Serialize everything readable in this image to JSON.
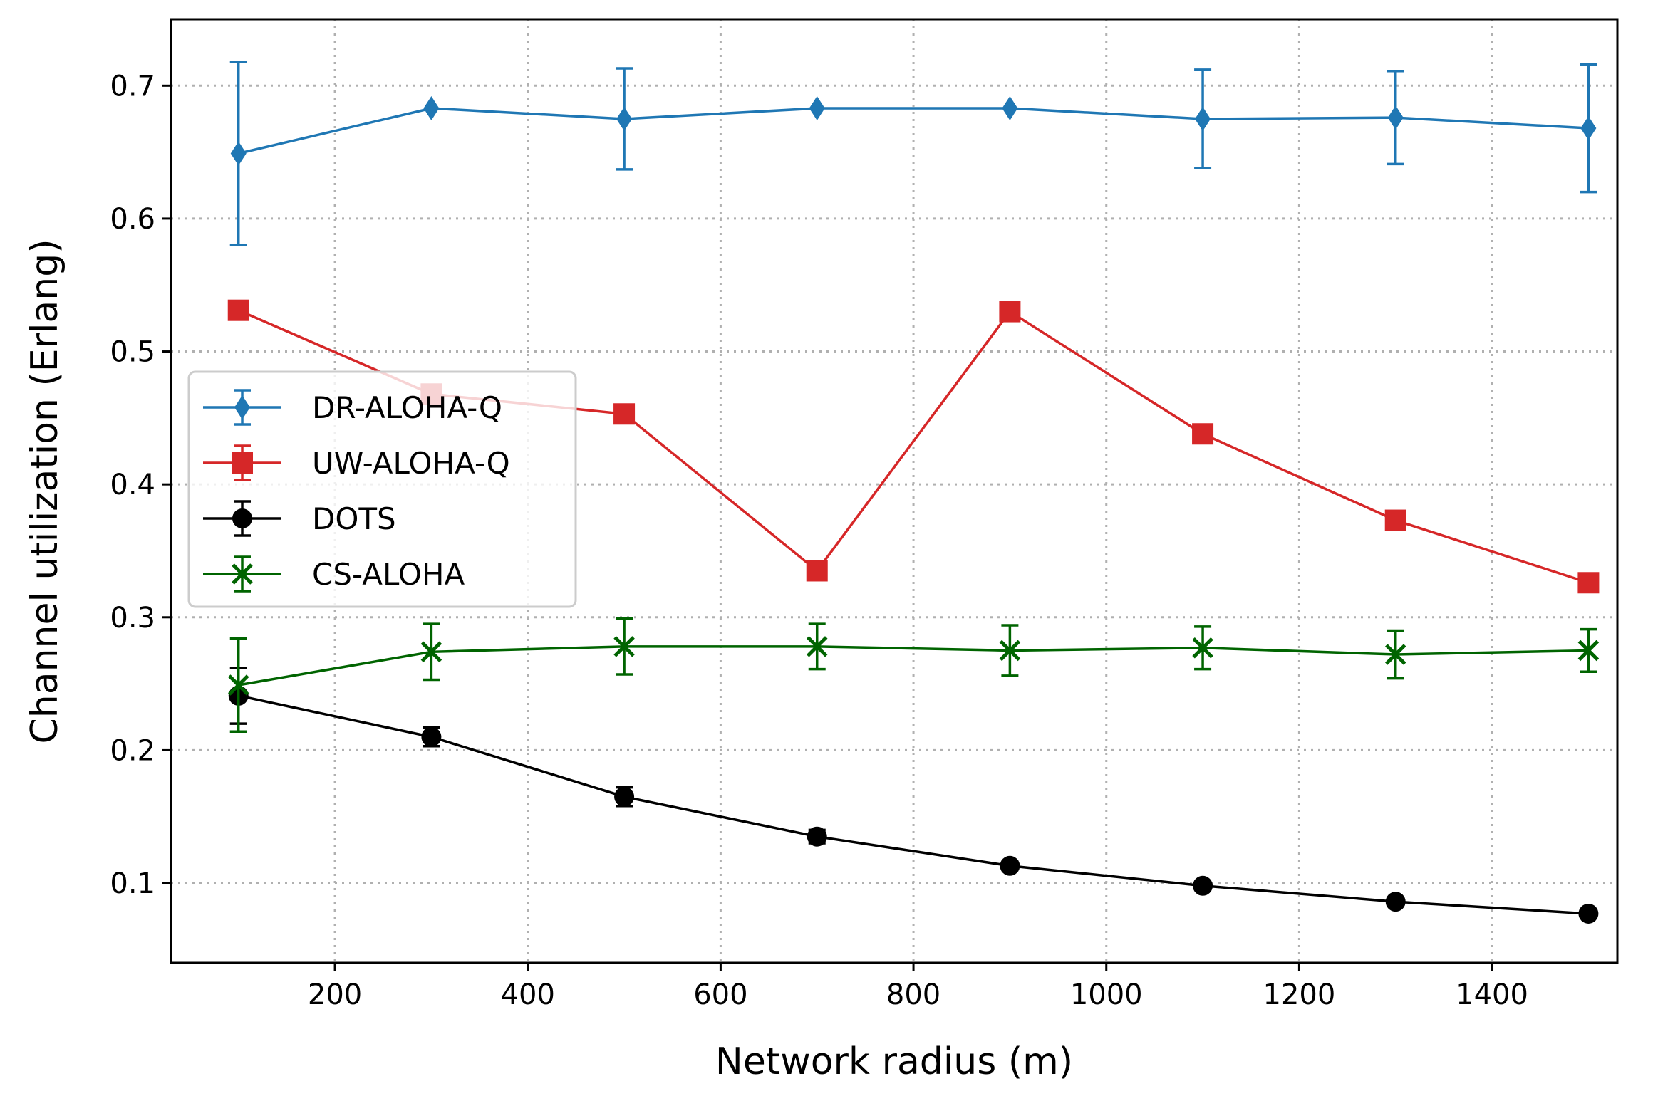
{
  "chart_data": {
    "type": "line",
    "title": "",
    "xlabel": "Network radius (m)",
    "ylabel": "Channel utilization (Erlang)",
    "xlim": [
      30,
      1530
    ],
    "ylim": [
      0.04,
      0.75
    ],
    "xticks": [
      200,
      400,
      600,
      800,
      1000,
      1200,
      1400
    ],
    "yticks": [
      0.1,
      0.2,
      0.3,
      0.4,
      0.5,
      0.6,
      0.7
    ],
    "grid": true,
    "legend_position": "center-left",
    "x": [
      100,
      300,
      500,
      700,
      900,
      1100,
      1300,
      1500
    ],
    "series": [
      {
        "name": "DR-ALOHA-Q",
        "color": "#1f77b4",
        "marker": "diamond",
        "values": [
          0.649,
          0.683,
          0.675,
          0.683,
          0.683,
          0.675,
          0.676,
          0.668
        ],
        "errors": [
          0.069,
          0.0,
          0.038,
          0.0,
          0.0,
          0.037,
          0.035,
          0.048
        ]
      },
      {
        "name": "UW-ALOHA-Q",
        "color": "#d62728",
        "marker": "square",
        "values": [
          0.531,
          0.468,
          0.453,
          0.335,
          0.53,
          0.438,
          0.373,
          0.326
        ],
        "errors": [
          0,
          0,
          0,
          0,
          0,
          0,
          0,
          0
        ]
      },
      {
        "name": "DOTS",
        "color": "#000000",
        "marker": "circle",
        "values": [
          0.241,
          0.21,
          0.165,
          0.135,
          0.113,
          0.098,
          0.086,
          0.077
        ],
        "errors": [
          0.021,
          0.007,
          0.007,
          0.005,
          0.003,
          0.003,
          0.003,
          0.003
        ]
      },
      {
        "name": "CS-ALOHA",
        "color": "#006400",
        "marker": "x",
        "values": [
          0.249,
          0.274,
          0.278,
          0.278,
          0.275,
          0.277,
          0.272,
          0.275
        ],
        "errors": [
          0.035,
          0.021,
          0.021,
          0.017,
          0.019,
          0.016,
          0.018,
          0.016
        ]
      }
    ]
  }
}
